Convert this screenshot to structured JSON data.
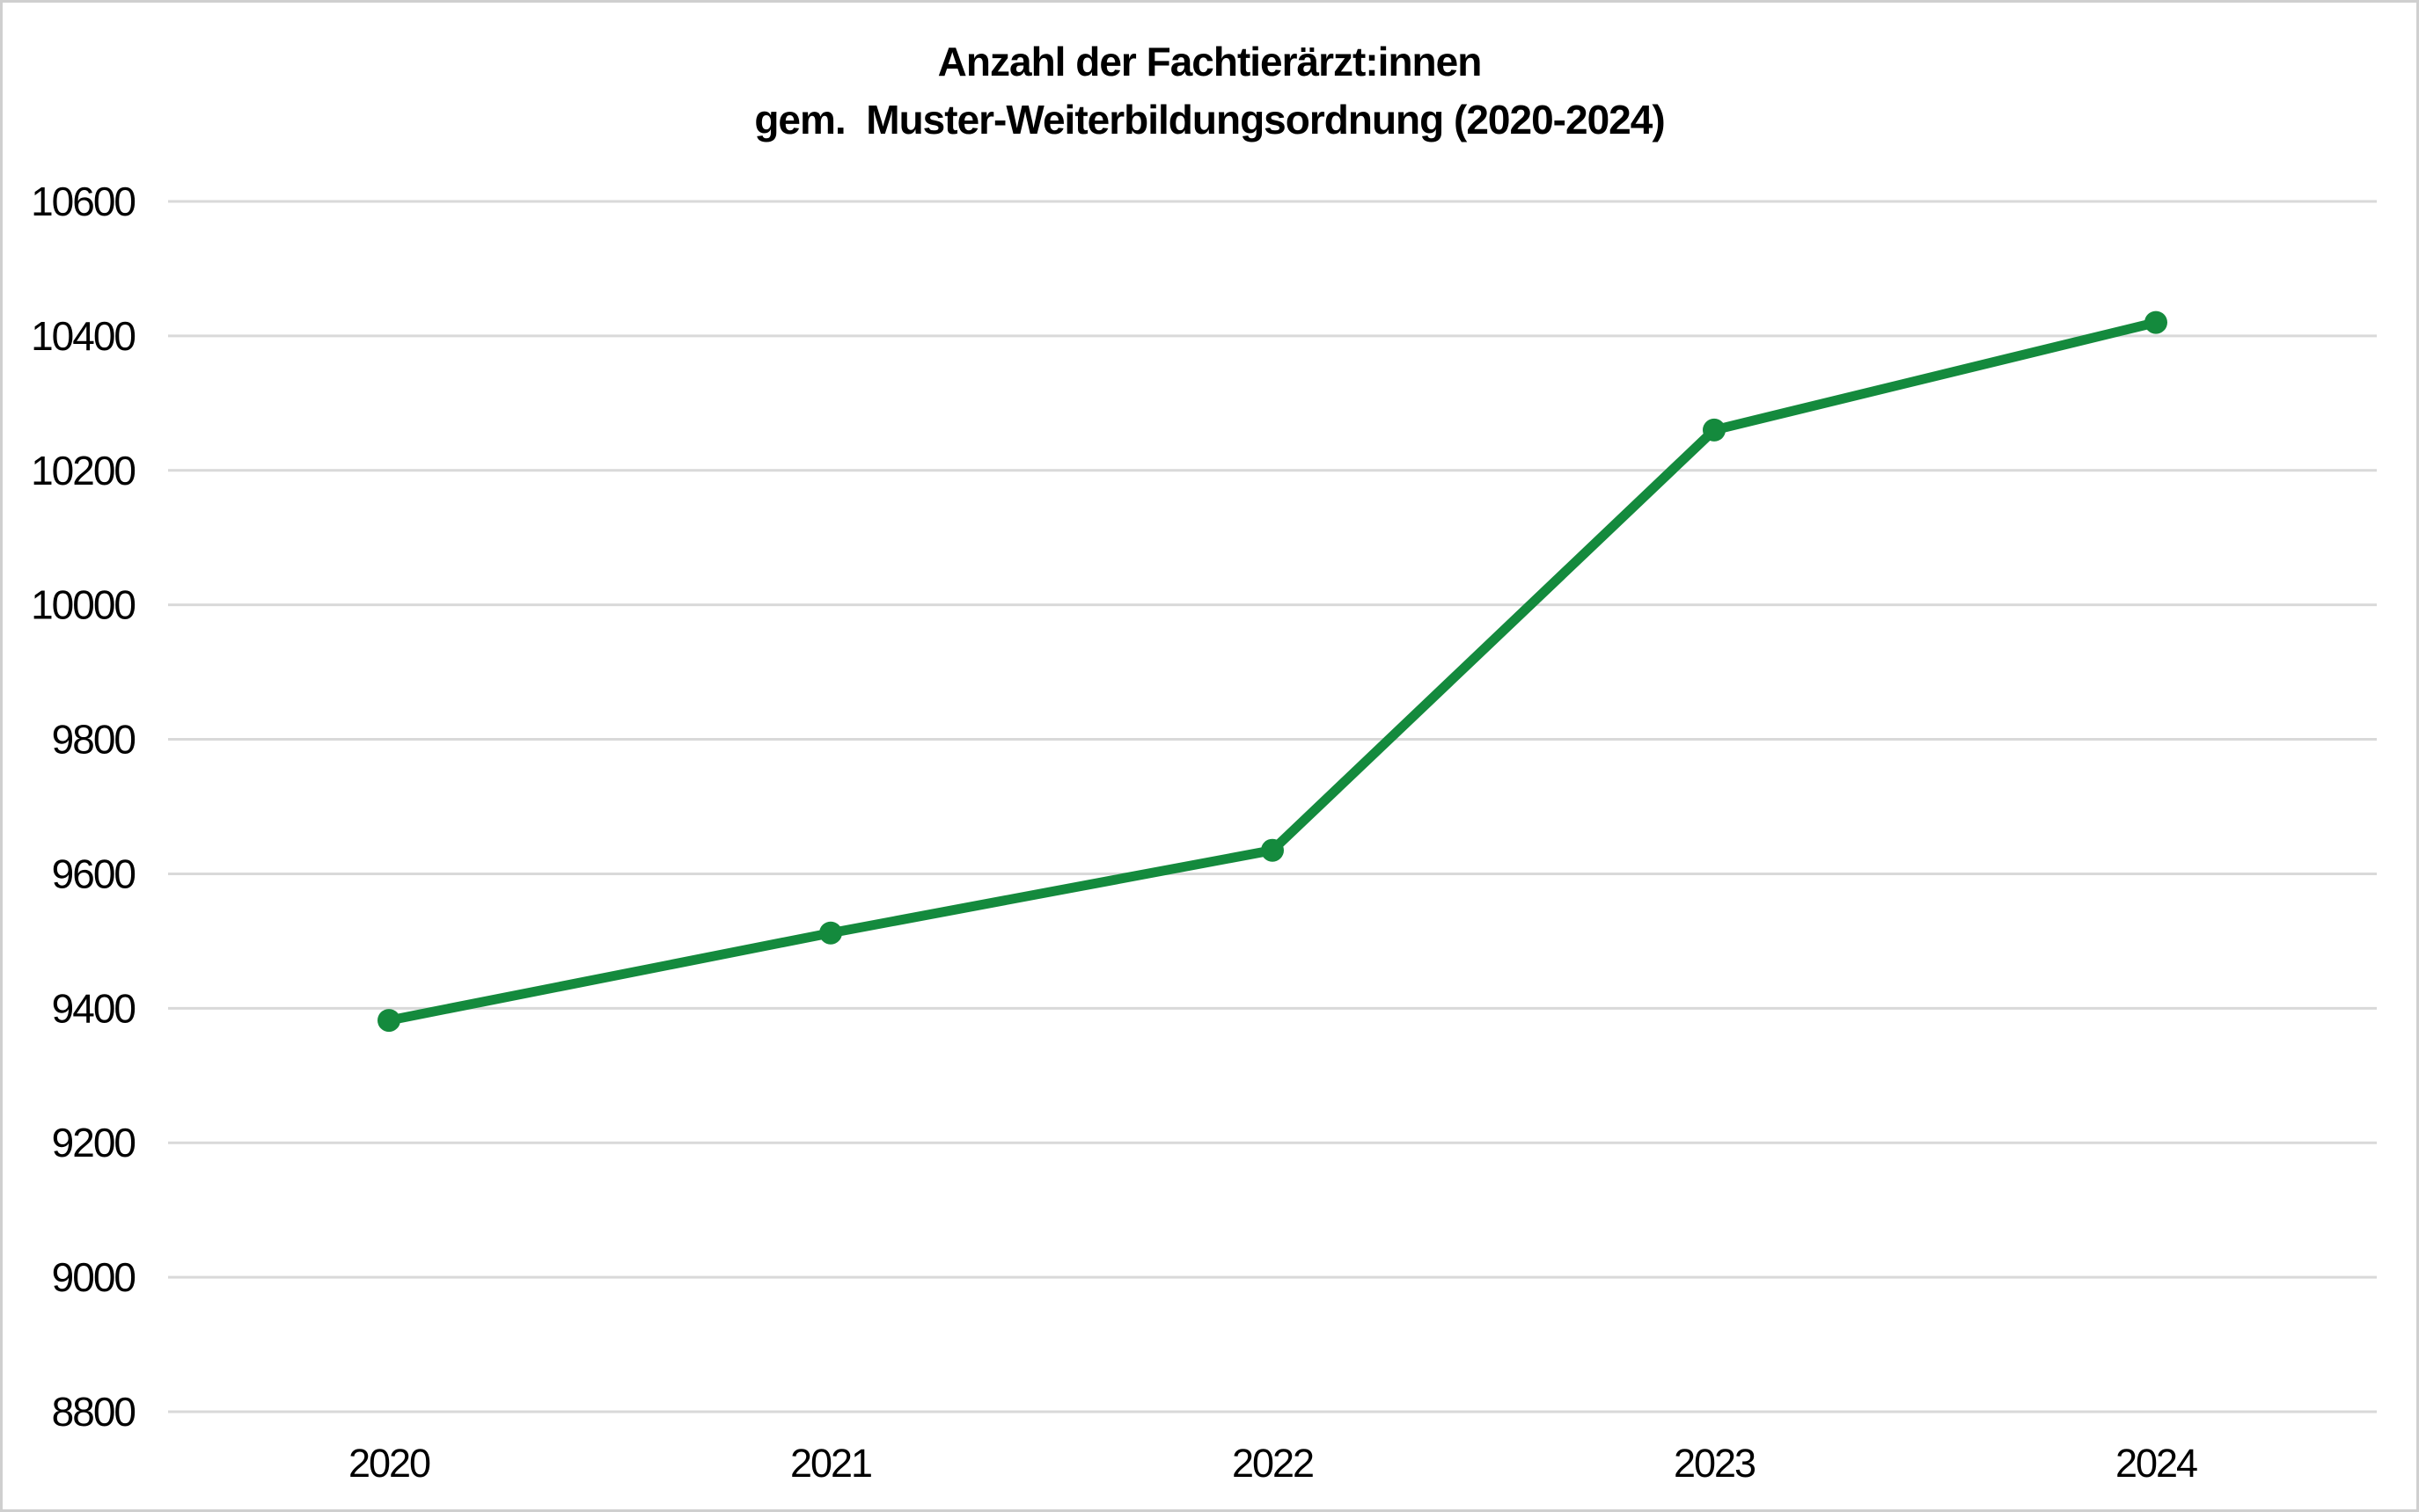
{
  "title": {
    "line1": "Anzahl der Fachtierärzt:innen",
    "line2": "gem.  Muster-Weiterbildungsordnung (2020-2024)"
  },
  "chart_data": {
    "type": "line",
    "title": "Anzahl der Fachtierärzt:innen gem. Muster-Weiterbildungsordnung (2020-2024)",
    "categories": [
      "2020",
      "2021",
      "2022",
      "2023",
      "2024"
    ],
    "values": [
      9382,
      9512,
      9635,
      10260,
      10420
    ],
    "xlabel": "",
    "ylabel": "",
    "ylim": [
      8800,
      10600
    ],
    "ytick_step": 200,
    "yticks": [
      8800,
      9000,
      9200,
      9400,
      9600,
      9800,
      10000,
      10200,
      10400,
      10600
    ],
    "grid": "horizontal",
    "legend": "none",
    "marker": "circle",
    "colors": {
      "line": "#148a3d",
      "marker": "#148a3d",
      "grid": "#d9d9d9",
      "text": "#000000",
      "background": "#ffffff",
      "border": "#cfcfcf"
    }
  }
}
